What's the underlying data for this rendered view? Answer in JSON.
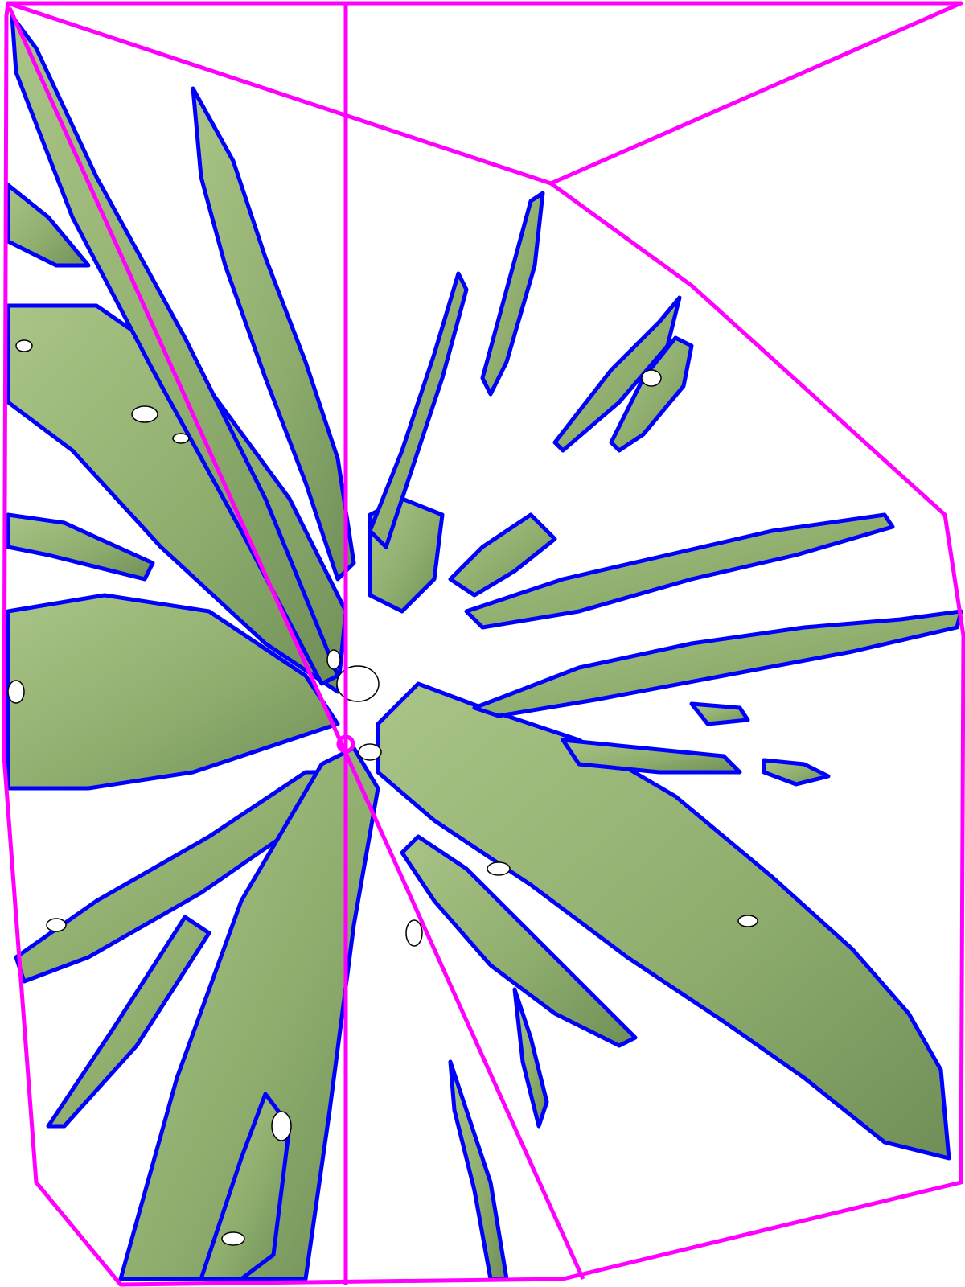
{
  "image": {
    "subject": "plant",
    "colors": {
      "background": "#ffffff",
      "hull_outline": "#ff00ff",
      "leaf_contour": "#0000ff",
      "leaf_fill": "#8fae6e",
      "leaf_fill_light": "#a9c486",
      "leaf_fill_shadow": "#6f8f58",
      "speckle_outline": "#000000"
    }
  }
}
